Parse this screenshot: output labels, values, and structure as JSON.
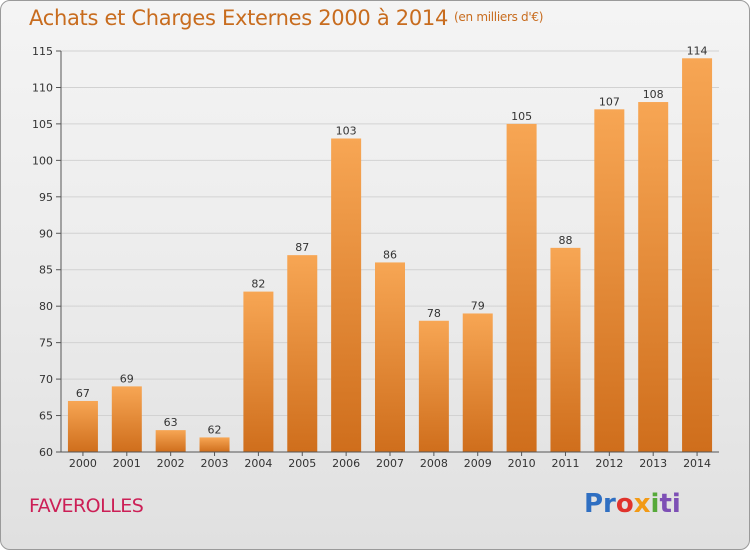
{
  "page": {
    "title": "Achats et Charges Externes 2000 à 2014",
    "unit": "(en milliers d'€)",
    "place": "FAVEROLLES",
    "logo_parts": [
      "Pr",
      "o",
      "x",
      "i",
      "ti"
    ]
  },
  "chart_data": {
    "type": "bar",
    "title": "Achats et Charges Externes 2000 à 2014",
    "subtitle": "(en milliers d'€)",
    "xlabel": "",
    "ylabel": "",
    "categories": [
      "2000",
      "2001",
      "2002",
      "2003",
      "2004",
      "2005",
      "2006",
      "2007",
      "2008",
      "2009",
      "2010",
      "2011",
      "2012",
      "2013",
      "2014"
    ],
    "values": [
      67,
      69,
      63,
      62,
      82,
      87,
      103,
      86,
      78,
      79,
      105,
      88,
      107,
      108,
      114
    ],
    "ylim": [
      60,
      115
    ],
    "yticks": [
      60,
      65,
      70,
      75,
      80,
      85,
      90,
      95,
      100,
      105,
      110,
      115
    ],
    "grid": true,
    "data_labels": true,
    "bar_color_top": "#f7a654",
    "bar_color_bottom": "#cf6e1c",
    "title_color": "#c86c1e",
    "place_color": "#cc1f56"
  }
}
